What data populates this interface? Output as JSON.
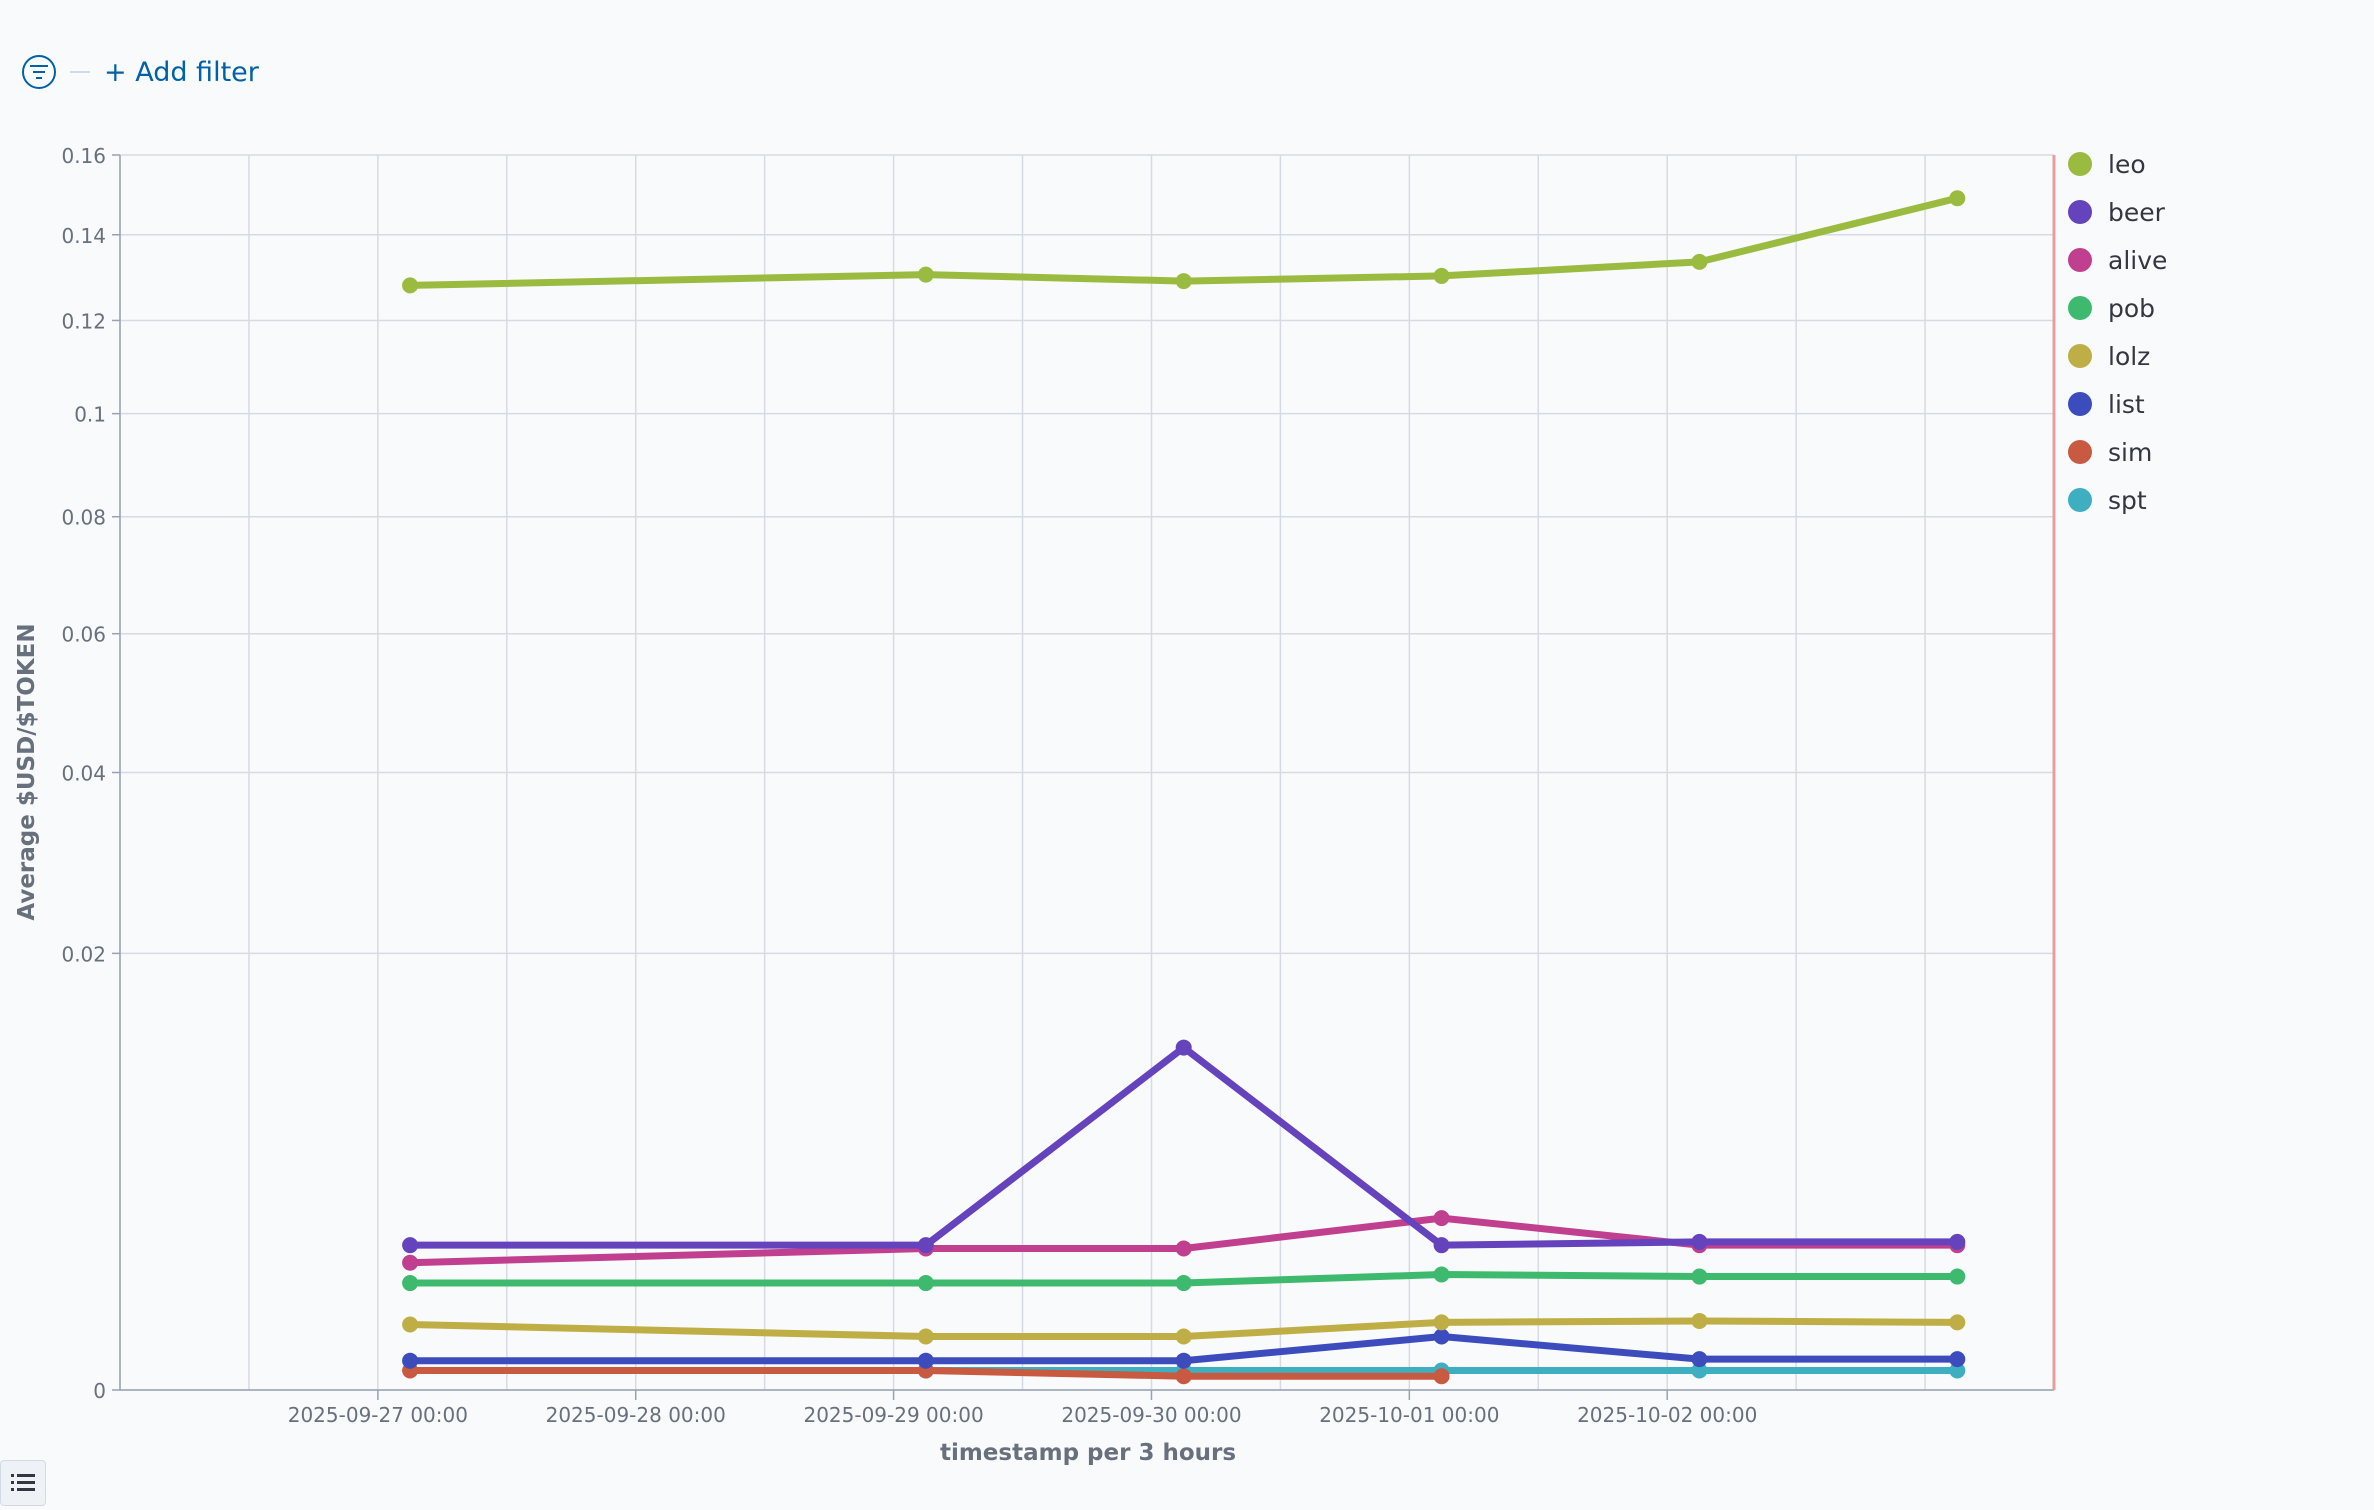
{
  "filter_bar": {
    "add_filter_label": "+ Add filter"
  },
  "chart_data": {
    "type": "line",
    "ylabel": "Average $USD/$TOKEN",
    "xlabel": "timestamp per 3 hours",
    "y_ticks": [
      0,
      0.02,
      0.04,
      0.06,
      0.08,
      0.1,
      0.12,
      0.14,
      0.16
    ],
    "y_tick_labels": [
      "0",
      "0.02",
      "0.04",
      "0.06",
      "0.08",
      "0.1",
      "0.12",
      "0.14",
      "0.16"
    ],
    "y_scale": "sqrt",
    "ylim": [
      0,
      0.16
    ],
    "x_tick_labels": [
      "2025-09-27 00:00",
      "2025-09-28 00:00",
      "2025-09-29 00:00",
      "2025-09-30 00:00",
      "2025-10-01 00:00",
      "2025-10-02 00:00"
    ],
    "x_ticks": [
      "2025-09-27 00:00",
      "2025-09-28 00:00",
      "2025-09-29 00:00",
      "2025-09-30 00:00",
      "2025-10-01 00:00",
      "2025-10-02 00:00"
    ],
    "xlim": [
      "2025-09-26 00:00",
      "2025-10-03 12:00"
    ],
    "x": [
      "2025-09-27 03:00",
      "2025-09-29 03:00",
      "2025-09-30 03:00",
      "2025-10-01 03:00",
      "2025-10-02 03:00",
      "2025-10-03 03:00"
    ],
    "grid": true,
    "legend_position": "right",
    "series": [
      {
        "name": "leo",
        "color": "#9bbb40",
        "values": [
          0.128,
          0.1305,
          0.129,
          0.1302,
          0.1335,
          0.149
        ]
      },
      {
        "name": "beer",
        "color": "#6543bd",
        "values": [
          0.0022,
          0.0022,
          0.0123,
          0.0022,
          0.0023,
          0.0023
        ]
      },
      {
        "name": "alive",
        "color": "#c0408f",
        "values": [
          0.0017,
          0.0021,
          0.0021,
          0.0031,
          0.0022,
          0.0022
        ]
      },
      {
        "name": "pob",
        "color": "#3eba6e",
        "values": [
          0.0012,
          0.0012,
          0.0012,
          0.0014,
          0.00135,
          0.00135
        ]
      },
      {
        "name": "lolz",
        "color": "#bfae45",
        "values": [
          0.00045,
          0.0003,
          0.0003,
          0.00048,
          0.0005,
          0.00048
        ]
      },
      {
        "name": "list",
        "color": "#3d4cbd",
        "values": [
          9e-05,
          9e-05,
          9e-05,
          0.0003,
          0.0001,
          0.0001
        ]
      },
      {
        "name": "sim",
        "color": "#c75a40",
        "values": [
          4e-05,
          4e-05,
          2e-05,
          2e-05,
          null,
          null
        ]
      },
      {
        "name": "spt",
        "color": "#3eafc0",
        "values": [
          null,
          4e-05,
          4e-05,
          4e-05,
          4e-05,
          4e-05
        ]
      }
    ]
  }
}
